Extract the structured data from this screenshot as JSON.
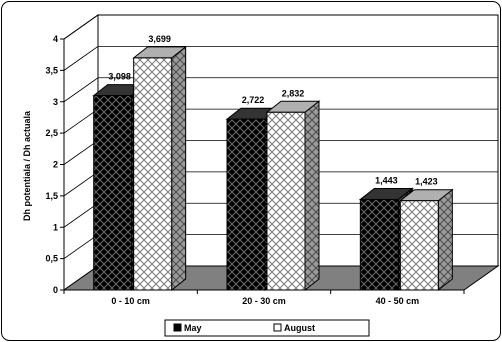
{
  "chart_data": {
    "type": "bar",
    "categories": [
      "0 - 10 cm",
      "20 - 30 cm",
      "40 - 50 cm"
    ],
    "series": [
      {
        "name": "May",
        "values": [
          3.098,
          2.722,
          1.443
        ],
        "labels": [
          "3,098",
          "2,722",
          "1,443"
        ]
      },
      {
        "name": "August",
        "values": [
          3.699,
          2.832,
          1.423
        ],
        "labels": [
          "3,699",
          "2,832",
          "1,423"
        ]
      }
    ],
    "ylabel": "Dh potentiala / Dh actuala",
    "ylim": [
      0,
      4
    ],
    "yticks": [
      "0",
      "0,5",
      "1",
      "1,5",
      "2",
      "2,5",
      "3",
      "3,5",
      "4"
    ],
    "grid": true,
    "legend": "bottom",
    "colors": {
      "series_may": "#000000",
      "series_august": "#ffffff",
      "floor": "#808080",
      "wall": "#ffffff",
      "gridline": "#000000"
    }
  }
}
